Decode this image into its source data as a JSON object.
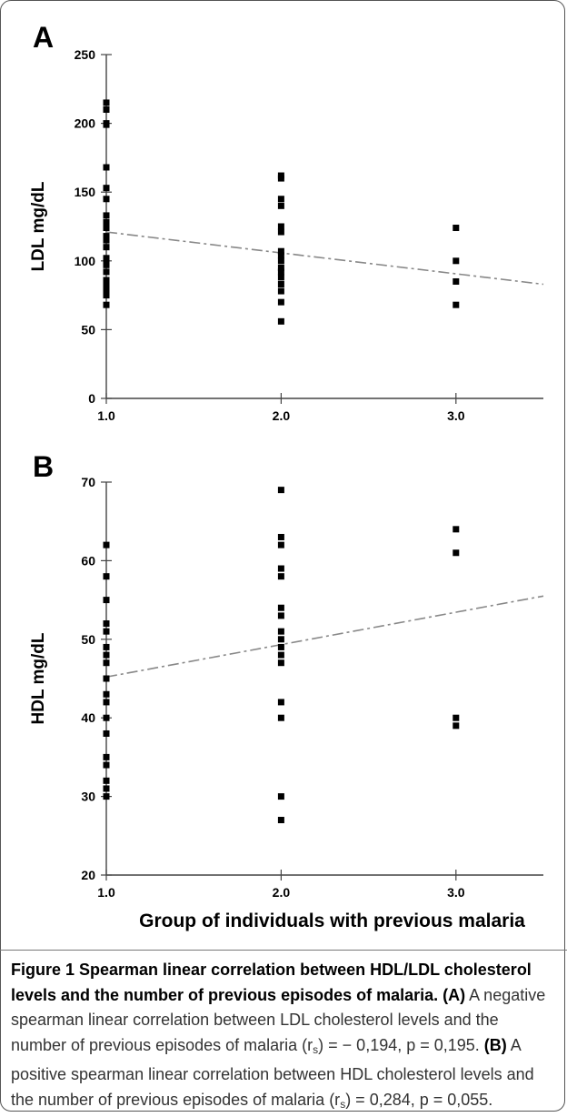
{
  "chart_data": [
    {
      "panel": "A",
      "type": "scatter",
      "xlabel": "Group of individuals with previous malaria",
      "ylabel": "LDL mg/dL",
      "xlim": [
        1.0,
        3.5
      ],
      "ylim": [
        0,
        250
      ],
      "xticks": [
        1.0,
        2.0,
        3.0
      ],
      "xtick_labels": [
        "1.0",
        "2.0",
        "3.0"
      ],
      "yticks": [
        0,
        50,
        100,
        150,
        200,
        250
      ],
      "ytick_labels": [
        "0",
        "50",
        "100",
        "150",
        "200",
        "250"
      ],
      "points": [
        [
          1.0,
          215
        ],
        [
          1.0,
          210
        ],
        [
          1.0,
          200
        ],
        [
          1.0,
          199
        ],
        [
          1.0,
          168
        ],
        [
          1.0,
          153
        ],
        [
          1.0,
          145
        ],
        [
          1.0,
          133
        ],
        [
          1.0,
          128
        ],
        [
          1.0,
          124
        ],
        [
          1.0,
          118
        ],
        [
          1.0,
          115
        ],
        [
          1.0,
          110
        ],
        [
          1.0,
          102
        ],
        [
          1.0,
          100
        ],
        [
          1.0,
          97
        ],
        [
          1.0,
          92
        ],
        [
          1.0,
          86
        ],
        [
          1.0,
          82
        ],
        [
          1.0,
          78
        ],
        [
          1.0,
          75
        ],
        [
          1.0,
          68
        ],
        [
          2.0,
          162
        ],
        [
          2.0,
          160
        ],
        [
          2.0,
          145
        ],
        [
          2.0,
          140
        ],
        [
          2.0,
          125
        ],
        [
          2.0,
          121
        ],
        [
          2.0,
          107
        ],
        [
          2.0,
          104
        ],
        [
          2.0,
          100
        ],
        [
          2.0,
          95
        ],
        [
          2.0,
          92
        ],
        [
          2.0,
          88
        ],
        [
          2.0,
          83
        ],
        [
          2.0,
          78
        ],
        [
          2.0,
          70
        ],
        [
          2.0,
          56
        ],
        [
          3.0,
          124
        ],
        [
          3.0,
          100
        ],
        [
          3.0,
          85
        ],
        [
          3.0,
          68
        ]
      ],
      "trend_line": {
        "x": [
          1.0,
          3.5
        ],
        "y": [
          121,
          83
        ],
        "style": "dash-dot"
      },
      "grid": false
    },
    {
      "panel": "B",
      "type": "scatter",
      "xlabel": "Group of individuals with previous malaria",
      "ylabel": "HDL mg/dL",
      "xlim": [
        1.0,
        3.5
      ],
      "ylim": [
        20,
        70
      ],
      "xticks": [
        1.0,
        2.0,
        3.0
      ],
      "xtick_labels": [
        "1.0",
        "2.0",
        "3.0"
      ],
      "yticks": [
        20,
        30,
        40,
        50,
        60,
        70
      ],
      "ytick_labels": [
        "20",
        "30",
        "40",
        "50",
        "60",
        "70"
      ],
      "points": [
        [
          1.0,
          62
        ],
        [
          1.0,
          58
        ],
        [
          1.0,
          55
        ],
        [
          1.0,
          52
        ],
        [
          1.0,
          51
        ],
        [
          1.0,
          49
        ],
        [
          1.0,
          48
        ],
        [
          1.0,
          47
        ],
        [
          1.0,
          45
        ],
        [
          1.0,
          43
        ],
        [
          1.0,
          42
        ],
        [
          1.0,
          40
        ],
        [
          1.0,
          38
        ],
        [
          1.0,
          35
        ],
        [
          1.0,
          34
        ],
        [
          1.0,
          32
        ],
        [
          1.0,
          31
        ],
        [
          1.0,
          30
        ],
        [
          2.0,
          69
        ],
        [
          2.0,
          63
        ],
        [
          2.0,
          62
        ],
        [
          2.0,
          59
        ],
        [
          2.0,
          58
        ],
        [
          2.0,
          54
        ],
        [
          2.0,
          53
        ],
        [
          2.0,
          51
        ],
        [
          2.0,
          50
        ],
        [
          2.0,
          49
        ],
        [
          2.0,
          48
        ],
        [
          2.0,
          47
        ],
        [
          2.0,
          42
        ],
        [
          2.0,
          40
        ],
        [
          2.0,
          30
        ],
        [
          2.0,
          27
        ],
        [
          3.0,
          64
        ],
        [
          3.0,
          61
        ],
        [
          3.0,
          40
        ],
        [
          3.0,
          39
        ]
      ],
      "trend_line": {
        "x": [
          1.0,
          3.5
        ],
        "y": [
          45.2,
          55.5
        ],
        "style": "dash-dot"
      },
      "grid": false
    }
  ],
  "panels": [
    {
      "letter": "A"
    },
    {
      "letter": "B"
    }
  ],
  "caption": {
    "title": "Figure 1 Spearman linear correlation between HDL/LDL cholesterol levels and the number of previous episodes of malaria.",
    "a_tag": "(A)",
    "a_text_1": " A negative spearman linear correlation between LDL cholesterol levels and the number of previous episodes of malaria (r",
    "a_sub": "s",
    "a_text_2": ") = − 0,194, p = 0,195. ",
    "b_tag": "(B)",
    "b_text_1": " A positive spearman linear correlation between HDL cholesterol levels and the number of previous episodes of malaria (r",
    "b_sub": "s",
    "b_text_2": ") = 0,284, p = 0,055."
  },
  "colors": {
    "marker": "#000000",
    "trend_line": "#888888",
    "axis": "#444444",
    "frame": "#555555"
  }
}
